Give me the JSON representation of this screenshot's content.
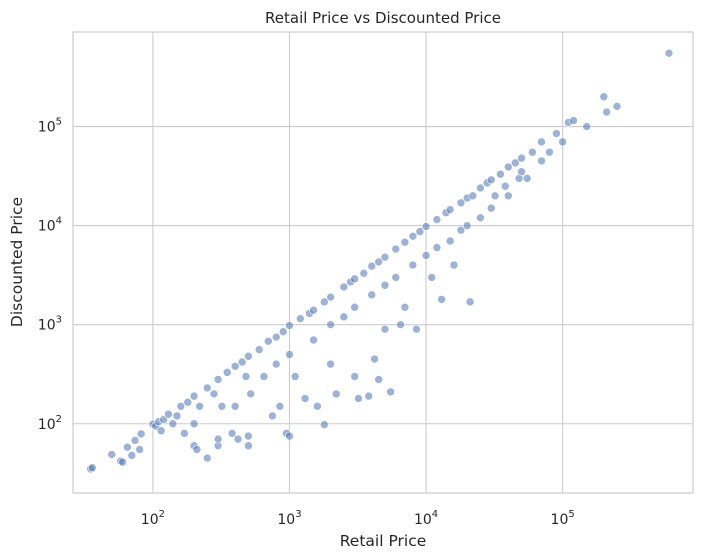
{
  "chart_data": {
    "type": "scatter",
    "title": "Retail Price vs Discounted Price",
    "xlabel": "Retail Price",
    "ylabel": "Discounted Price",
    "xscale": "log",
    "yscale": "log",
    "xlim": [
      26,
      900000
    ],
    "ylim": [
      20,
      900000
    ],
    "grid": true,
    "marker_color": "#4c72b0",
    "marker_alpha": 0.55,
    "x_ticks": [
      {
        "base": "10",
        "exp": "2",
        "value": 100
      },
      {
        "base": "10",
        "exp": "3",
        "value": 1000
      },
      {
        "base": "10",
        "exp": "4",
        "value": 10000
      },
      {
        "base": "10",
        "exp": "5",
        "value": 100000
      }
    ],
    "y_ticks": [
      {
        "base": "10",
        "exp": "2",
        "value": 100
      },
      {
        "base": "10",
        "exp": "3",
        "value": 1000
      },
      {
        "base": "10",
        "exp": "4",
        "value": 10000
      },
      {
        "base": "10",
        "exp": "5",
        "value": 100000
      }
    ],
    "series": [
      {
        "points": [
          [
            35,
            35
          ],
          [
            36,
            36
          ],
          [
            50,
            49
          ],
          [
            58,
            42
          ],
          [
            60,
            41
          ],
          [
            65,
            58
          ],
          [
            70,
            48
          ],
          [
            74,
            68
          ],
          [
            80,
            55
          ],
          [
            82,
            79
          ],
          [
            100,
            99
          ],
          [
            105,
            95
          ],
          [
            110,
            105
          ],
          [
            115,
            85
          ],
          [
            120,
            110
          ],
          [
            130,
            125
          ],
          [
            140,
            100
          ],
          [
            150,
            120
          ],
          [
            160,
            150
          ],
          [
            170,
            80
          ],
          [
            180,
            165
          ],
          [
            200,
            190
          ],
          [
            200,
            100
          ],
          [
            200,
            60
          ],
          [
            210,
            55
          ],
          [
            220,
            150
          ],
          [
            250,
            230
          ],
          [
            250,
            45
          ],
          [
            280,
            200
          ],
          [
            300,
            280
          ],
          [
            300,
            60
          ],
          [
            300,
            70
          ],
          [
            320,
            150
          ],
          [
            350,
            330
          ],
          [
            380,
            80
          ],
          [
            400,
            380
          ],
          [
            400,
            150
          ],
          [
            420,
            70
          ],
          [
            450,
            420
          ],
          [
            480,
            300
          ],
          [
            500,
            480
          ],
          [
            500,
            60
          ],
          [
            500,
            75
          ],
          [
            520,
            200
          ],
          [
            600,
            560
          ],
          [
            650,
            300
          ],
          [
            700,
            680
          ],
          [
            750,
            120
          ],
          [
            800,
            750
          ],
          [
            800,
            400
          ],
          [
            850,
            150
          ],
          [
            900,
            850
          ],
          [
            950,
            80
          ],
          [
            1000,
            980
          ],
          [
            1000,
            500
          ],
          [
            1000,
            75
          ],
          [
            1100,
            300
          ],
          [
            1200,
            1150
          ],
          [
            1300,
            180
          ],
          [
            1400,
            1300
          ],
          [
            1500,
            1400
          ],
          [
            1500,
            700
          ],
          [
            1600,
            150
          ],
          [
            1800,
            1700
          ],
          [
            1800,
            98
          ],
          [
            2000,
            1900
          ],
          [
            2000,
            1000
          ],
          [
            2000,
            400
          ],
          [
            2200,
            200
          ],
          [
            2500,
            2400
          ],
          [
            2500,
            1200
          ],
          [
            2800,
            2700
          ],
          [
            3000,
            2900
          ],
          [
            3000,
            1500
          ],
          [
            3000,
            300
          ],
          [
            3200,
            180
          ],
          [
            3500,
            3300
          ],
          [
            3800,
            190
          ],
          [
            4000,
            3900
          ],
          [
            4000,
            2000
          ],
          [
            4200,
            450
          ],
          [
            4500,
            4300
          ],
          [
            4500,
            280
          ],
          [
            5000,
            4800
          ],
          [
            5000,
            2500
          ],
          [
            5000,
            900
          ],
          [
            5500,
            210
          ],
          [
            6000,
            5800
          ],
          [
            6000,
            3000
          ],
          [
            6500,
            1000
          ],
          [
            7000,
            6800
          ],
          [
            7000,
            1500
          ],
          [
            8000,
            7800
          ],
          [
            8000,
            4000
          ],
          [
            8500,
            900
          ],
          [
            9000,
            8700
          ],
          [
            10000,
            9800
          ],
          [
            10000,
            5000
          ],
          [
            11000,
            3000
          ],
          [
            12000,
            11500
          ],
          [
            12000,
            6000
          ],
          [
            13000,
            1800
          ],
          [
            14000,
            13500
          ],
          [
            15000,
            14500
          ],
          [
            15000,
            7000
          ],
          [
            16000,
            4000
          ],
          [
            18000,
            17000
          ],
          [
            18000,
            9000
          ],
          [
            20000,
            19000
          ],
          [
            20000,
            10000
          ],
          [
            21000,
            1700
          ],
          [
            22000,
            20000
          ],
          [
            25000,
            24000
          ],
          [
            25000,
            12000
          ],
          [
            28000,
            27000
          ],
          [
            30000,
            29000
          ],
          [
            30000,
            15000
          ],
          [
            32000,
            20000
          ],
          [
            35000,
            33000
          ],
          [
            38000,
            25000
          ],
          [
            40000,
            39000
          ],
          [
            40000,
            20000
          ],
          [
            45000,
            43000
          ],
          [
            48000,
            30000
          ],
          [
            50000,
            48000
          ],
          [
            50000,
            35000
          ],
          [
            55000,
            30000
          ],
          [
            60000,
            55000
          ],
          [
            70000,
            70000
          ],
          [
            70000,
            45000
          ],
          [
            80000,
            55000
          ],
          [
            90000,
            85000
          ],
          [
            100000,
            70000
          ],
          [
            110000,
            110000
          ],
          [
            120000,
            115000
          ],
          [
            150000,
            100000
          ],
          [
            200000,
            200000
          ],
          [
            210000,
            140000
          ],
          [
            250000,
            160000
          ],
          [
            600000,
            550000
          ]
        ]
      }
    ]
  }
}
